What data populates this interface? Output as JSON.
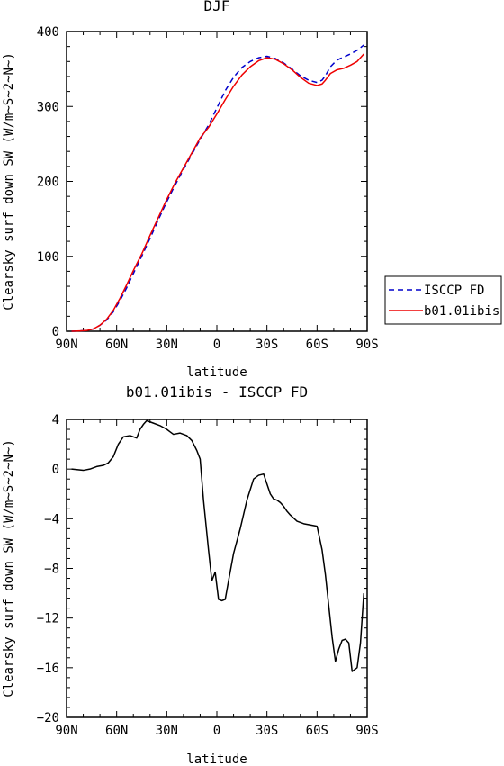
{
  "chart_data": [
    {
      "type": "line",
      "title": "DJF",
      "xlabel": "latitude",
      "ylabel": "Clearsky surf down SW (W/m~S~2~N~)",
      "xlim": [
        90,
        -90
      ],
      "ylim": [
        0,
        400
      ],
      "xticks": [
        90,
        60,
        30,
        0,
        -30,
        -60,
        -90
      ],
      "xtick_labels": [
        "90N",
        "60N",
        "30N",
        "0",
        "30S",
        "60S",
        "90S"
      ],
      "yticks": [
        0,
        100,
        200,
        300,
        400
      ],
      "ytick_labels": [
        "0",
        "100",
        "200",
        "300",
        "400"
      ],
      "legend_position": "right",
      "series": [
        {
          "name": "ISCCP FD",
          "color": "#0000cc",
          "dash": true,
          "x": [
            87,
            82,
            78,
            74,
            70,
            66,
            62,
            58,
            54,
            50,
            45,
            40,
            35,
            30,
            25,
            20,
            15,
            10,
            5,
            0,
            -5,
            -10,
            -15,
            -20,
            -25,
            -30,
            -35,
            -40,
            -45,
            -50,
            -55,
            -60,
            -63,
            -65,
            -68,
            -72,
            -76,
            -80,
            -84,
            -88
          ],
          "y": [
            0,
            0.5,
            1,
            3,
            8,
            15,
            26,
            41,
            58,
            77,
            100,
            124,
            149,
            173,
            195,
            216,
            236,
            256,
            275,
            298,
            321,
            339,
            352,
            360,
            365,
            367,
            364,
            358,
            350,
            341,
            335,
            332,
            335,
            341,
            353,
            362,
            366,
            370,
            375,
            382
          ]
        },
        {
          "name": "b01.01ibis",
          "color": "#ee0000",
          "dash": false,
          "x": [
            87,
            82,
            78,
            74,
            70,
            66,
            62,
            58,
            54,
            50,
            45,
            40,
            35,
            30,
            25,
            20,
            15,
            10,
            5,
            0,
            -5,
            -10,
            -15,
            -20,
            -25,
            -30,
            -35,
            -40,
            -45,
            -50,
            -55,
            -60,
            -63,
            -65,
            -68,
            -72,
            -76,
            -80,
            -84,
            -88
          ],
          "y": [
            0,
            0.5,
            1,
            3,
            8,
            16,
            28,
            44,
            62,
            81,
            103,
            128,
            152,
            176,
            198,
            218,
            238,
            258,
            272,
            290,
            309,
            327,
            342,
            353,
            361,
            365,
            363,
            357,
            349,
            339,
            331,
            328,
            330,
            335,
            344,
            349,
            351,
            355,
            360,
            370
          ]
        }
      ]
    },
    {
      "type": "line",
      "title": "b01.01ibis - ISCCP FD",
      "xlabel": "latitude",
      "ylabel": "Clearsky surf down SW (W/m~S~2~N~)",
      "xlim": [
        90,
        -90
      ],
      "ylim": [
        -20,
        4
      ],
      "xticks": [
        90,
        60,
        30,
        0,
        -30,
        -60,
        -90
      ],
      "xtick_labels": [
        "90N",
        "60N",
        "30N",
        "0",
        "30S",
        "60S",
        "90S"
      ],
      "yticks": [
        -20,
        -16,
        -12,
        -8,
        -4,
        0,
        4
      ],
      "ytick_labels": [
        "−20",
        "−16",
        "−12",
        "−8",
        "−4",
        "0",
        "4"
      ],
      "series": [
        {
          "color": "#000000",
          "dash": false,
          "x": [
            87,
            80,
            76,
            72,
            68,
            65,
            62,
            59,
            56,
            52,
            48,
            46,
            44,
            42,
            38,
            34,
            30,
            28,
            26,
            22,
            18,
            15,
            12,
            10,
            8,
            5,
            3,
            1,
            -1,
            -3,
            -5,
            -7,
            -10,
            -14,
            -18,
            -22,
            -25,
            -28,
            -30,
            -32,
            -34,
            -36,
            -38,
            -40,
            -42,
            -44,
            -48,
            -52,
            -56,
            -60,
            -63,
            -65,
            -67,
            -69,
            -71,
            -73,
            -75,
            -77,
            -79,
            -81,
            -84,
            -86,
            -88
          ],
          "y": [
            0,
            -0.1,
            0,
            0.2,
            0.3,
            0.5,
            1.0,
            2.0,
            2.6,
            2.7,
            2.5,
            3.2,
            3.6,
            3.9,
            3.7,
            3.5,
            3.2,
            3.0,
            2.8,
            2.9,
            2.7,
            2.3,
            1.5,
            0.8,
            -2.5,
            -6.5,
            -9.0,
            -8.3,
            -10.5,
            -10.6,
            -10.5,
            -9.0,
            -6.8,
            -4.8,
            -2.5,
            -0.8,
            -0.5,
            -0.4,
            -1.2,
            -2.0,
            -2.4,
            -2.5,
            -2.7,
            -3.0,
            -3.4,
            -3.7,
            -4.2,
            -4.4,
            -4.5,
            -4.6,
            -6.5,
            -8.5,
            -11.0,
            -13.5,
            -15.5,
            -14.5,
            -13.8,
            -13.7,
            -14.0,
            -16.3,
            -16.0,
            -14.0,
            -10.0
          ]
        }
      ]
    }
  ],
  "legend": {
    "items": [
      {
        "label": "ISCCP FD",
        "color": "#0000cc",
        "dash": true
      },
      {
        "label": "b01.01ibis",
        "color": "#ee0000",
        "dash": false
      }
    ]
  }
}
